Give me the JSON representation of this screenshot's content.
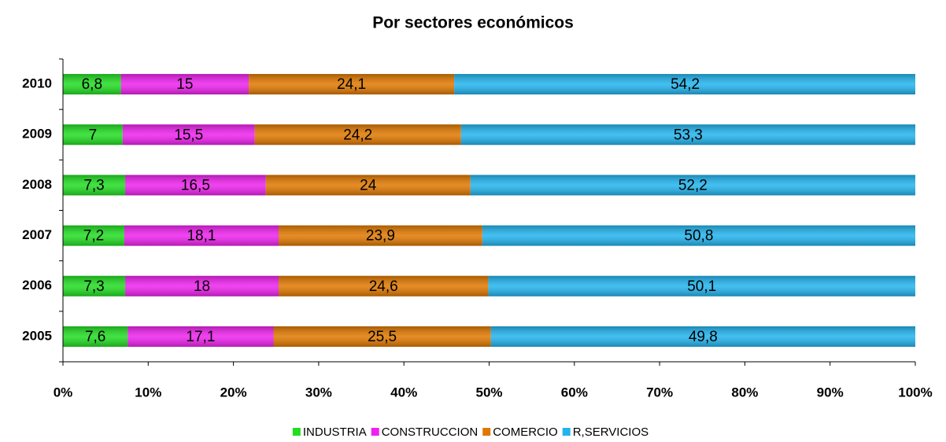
{
  "chart_data": {
    "type": "stacked-barh",
    "title": "Por sectores económicos",
    "categories": [
      "2005",
      "2006",
      "2007",
      "2008",
      "2009",
      "2010"
    ],
    "series": [
      {
        "name": "INDUSTRIA",
        "color": "#22dd22",
        "values": [
          7.6,
          7.3,
          7.2,
          7.3,
          7,
          6.8
        ],
        "value_labels": [
          "7,6",
          "7,3",
          "7,2",
          "7,3",
          "7",
          "6,8"
        ]
      },
      {
        "name": "CONSTRUCCION",
        "color": "#ee22ee",
        "values": [
          17.1,
          18,
          18.1,
          16.5,
          15.5,
          15
        ],
        "value_labels": [
          "17,1",
          "18",
          "18,1",
          "16,5",
          "15,5",
          "15"
        ]
      },
      {
        "name": "COMERCIO",
        "color": "#e07800",
        "values": [
          25.5,
          24.6,
          23.9,
          24,
          24.2,
          24.1
        ],
        "value_labels": [
          "25,5",
          "24,6",
          "23,9",
          "24",
          "24,2",
          "24,1"
        ]
      },
      {
        "name": "R,SERVICIOS",
        "color": "#22b4ee",
        "values": [
          49.8,
          50.1,
          50.8,
          52.2,
          53.3,
          54.2
        ],
        "value_labels": [
          "49,8",
          "50,1",
          "50,8",
          "52,2",
          "53,3",
          "54,2"
        ]
      }
    ],
    "xlim": [
      0,
      100
    ],
    "xticks": [
      {
        "value": 0,
        "label": "0%"
      },
      {
        "value": 10,
        "label": "10%"
      },
      {
        "value": 20,
        "label": "20%"
      },
      {
        "value": 30,
        "label": "30%"
      },
      {
        "value": 40,
        "label": "40%"
      },
      {
        "value": 50,
        "label": "50%"
      },
      {
        "value": 60,
        "label": "60%"
      },
      {
        "value": 70,
        "label": "70%"
      },
      {
        "value": 80,
        "label": "80%"
      },
      {
        "value": 90,
        "label": "90%"
      },
      {
        "value": 100,
        "label": "100%"
      }
    ],
    "legend": "bottom"
  }
}
